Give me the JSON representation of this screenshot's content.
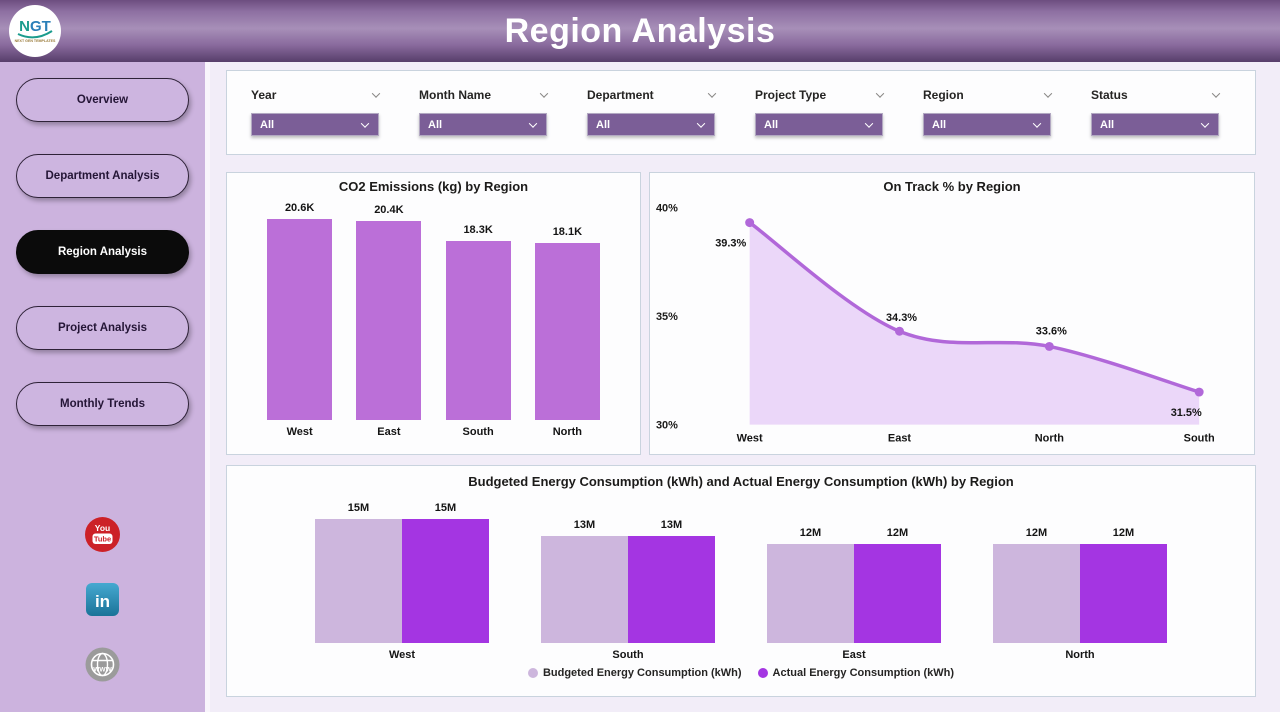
{
  "header": {
    "title": "Region Analysis",
    "logo": {
      "text": "NGT",
      "subtext": "NEXT GEN TEMPLATES"
    }
  },
  "sidebar": {
    "items": [
      {
        "label": "Overview",
        "active": false
      },
      {
        "label": "Department Analysis",
        "active": false
      },
      {
        "label": "Region Analysis",
        "active": true
      },
      {
        "label": "Project Analysis",
        "active": false
      },
      {
        "label": "Monthly Trends",
        "active": false
      }
    ],
    "social": [
      "youtube",
      "linkedin",
      "website"
    ]
  },
  "filters": [
    {
      "label": "Year",
      "value": "All"
    },
    {
      "label": "Month Name",
      "value": "All"
    },
    {
      "label": "Department",
      "value": "All"
    },
    {
      "label": "Project Type",
      "value": "All"
    },
    {
      "label": "Region",
      "value": "All"
    },
    {
      "label": "Status",
      "value": "All"
    }
  ],
  "colors": {
    "co2_bar": "#bb6fd8",
    "line": "#b168d9",
    "area_fill": "#e9d3f8",
    "budgeted": "#cdb6dd",
    "actual": "#a435e2",
    "dropdown": "#7b5e97",
    "sidebar_bg": "#ccb3de"
  },
  "chart_data": [
    {
      "id": "co2",
      "type": "bar",
      "title": "CO2 Emissions (kg) by Region",
      "categories": [
        "West",
        "East",
        "South",
        "North"
      ],
      "values": [
        20600,
        20400,
        18300,
        18100
      ],
      "labels": [
        "20.6K",
        "20.4K",
        "18.3K",
        "18.1K"
      ],
      "ylabel": "CO2 Emissions (kg)",
      "ylim": [
        0,
        22000
      ],
      "grid": false,
      "legend_position": "none"
    },
    {
      "id": "ontrack",
      "type": "area",
      "title": "On Track % by Region",
      "categories": [
        "West",
        "East",
        "North",
        "South"
      ],
      "values": [
        39.3,
        34.3,
        33.6,
        31.5
      ],
      "labels": [
        "39.3%",
        "34.3%",
        "33.6%",
        "31.5%"
      ],
      "ylabel": "On Track %",
      "ylim": [
        30,
        40
      ],
      "ytick_values": [
        40,
        35,
        30
      ],
      "ytick_labels": [
        "40%",
        "35%",
        "30%"
      ],
      "grid": false,
      "legend_position": "none"
    },
    {
      "id": "energy",
      "type": "bar",
      "title": "Budgeted Energy Consumption (kWh) and Actual Energy Consumption (kWh) by Region",
      "categories": [
        "West",
        "South",
        "East",
        "North"
      ],
      "series": [
        {
          "name": "Budgeted Energy Consumption (kWh)",
          "values": [
            15000000,
            13000000,
            12000000,
            12000000
          ],
          "labels": [
            "15M",
            "13M",
            "12M",
            "12M"
          ]
        },
        {
          "name": "Actual Energy Consumption (kWh)",
          "values": [
            15000000,
            13000000,
            12000000,
            12000000
          ],
          "labels": [
            "15M",
            "13M",
            "12M",
            "12M"
          ]
        }
      ],
      "ylim": [
        0,
        17000000
      ],
      "grid": false,
      "legend_position": "bottom"
    }
  ]
}
